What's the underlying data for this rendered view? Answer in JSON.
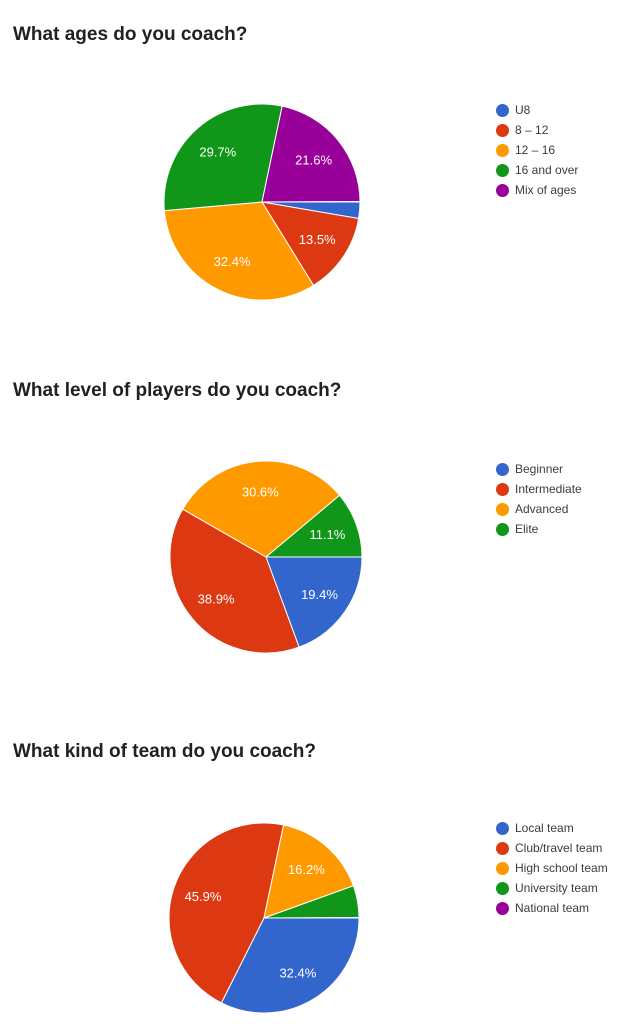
{
  "page": {
    "background": "#ffffff",
    "palette": {
      "blue": "#3366cc",
      "red": "#dc3912",
      "orange": "#ff9900",
      "green": "#109618",
      "purple": "#990099"
    }
  },
  "chart_data": [
    {
      "type": "pie",
      "title": "What ages do you coach?",
      "legend_position": "right",
      "start_angle_clockwise_from_top_deg": 90,
      "slices": [
        {
          "label": "U8",
          "value": 2.7,
          "color": "#3366cc",
          "pct_label": ""
        },
        {
          "label": "8 – 12",
          "value": 13.5,
          "color": "#dc3912",
          "pct_label": "13.5%"
        },
        {
          "label": "12 – 16",
          "value": 32.4,
          "color": "#ff9900",
          "pct_label": "32.4%"
        },
        {
          "label": "16 and over",
          "value": 29.7,
          "color": "#109618",
          "pct_label": "29.7%"
        },
        {
          "label": "Mix of ages",
          "value": 21.6,
          "color": "#990099",
          "pct_label": "21.6%"
        }
      ]
    },
    {
      "type": "pie",
      "title": "What level of players do you coach?",
      "legend_position": "right",
      "start_angle_clockwise_from_top_deg": 90,
      "slices": [
        {
          "label": "Beginner",
          "value": 19.4,
          "color": "#3366cc",
          "pct_label": "19.4%"
        },
        {
          "label": "Intermediate",
          "value": 38.9,
          "color": "#dc3912",
          "pct_label": "38.9%"
        },
        {
          "label": "Advanced",
          "value": 30.6,
          "color": "#ff9900",
          "pct_label": "30.6%"
        },
        {
          "label": "Elite",
          "value": 11.1,
          "color": "#109618",
          "pct_label": "11.1%"
        }
      ]
    },
    {
      "type": "pie",
      "title": "What kind of team do you coach?",
      "legend_position": "right",
      "start_angle_clockwise_from_top_deg": 90,
      "slices": [
        {
          "label": "Local team",
          "value": 32.4,
          "color": "#3366cc",
          "pct_label": "32.4%"
        },
        {
          "label": "Club/travel team",
          "value": 45.9,
          "color": "#dc3912",
          "pct_label": "45.9%"
        },
        {
          "label": "High school team",
          "value": 16.2,
          "color": "#ff9900",
          "pct_label": "16.2%"
        },
        {
          "label": "University team",
          "value": 5.4,
          "color": "#109618",
          "pct_label": ""
        },
        {
          "label": "National team",
          "value": 0,
          "color": "#990099",
          "pct_label": ""
        }
      ]
    }
  ]
}
